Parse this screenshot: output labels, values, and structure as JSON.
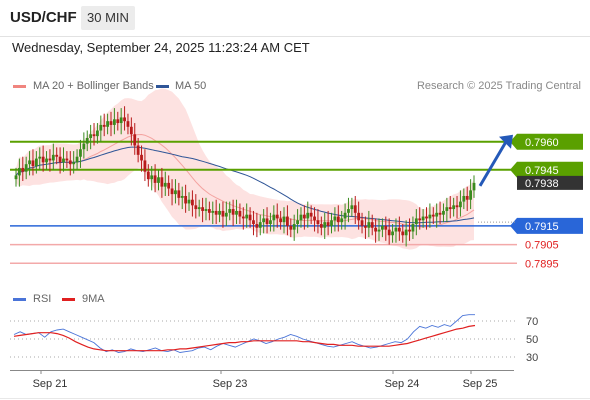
{
  "header": {
    "symbol": "USD/CHF",
    "interval": "30 MIN",
    "datetime": "Wednesday, September 24, 2025 11:23:24 AM CET"
  },
  "legend": {
    "bollinger": "MA 20 + Bollinger Bands",
    "ma50": "MA 50",
    "credit": "Research © 2025 Trading Central"
  },
  "rsi_legend": {
    "rsi": "RSI",
    "ma9": "9MA"
  },
  "chart_data": [
    {
      "type": "candlestick",
      "title": "USD/CHF",
      "interval": "30 MIN",
      "ylim": [
        0.7885,
        0.7985
      ],
      "x_ticks": [
        "Sep 21",
        "Sep 23",
        "Sep 24",
        "Sep 25"
      ],
      "levels": [
        {
          "value": 0.796,
          "label": "0.7960",
          "kind": "resistance",
          "color": "#5aa000"
        },
        {
          "value": 0.7945,
          "label": "0.7945",
          "kind": "resistance",
          "color": "#5aa000"
        },
        {
          "value": 0.7938,
          "label": "0.7938",
          "kind": "last price",
          "color": "#333333"
        },
        {
          "value": 0.7915,
          "label": "0.7915",
          "kind": "pivot",
          "color": "#2966d8"
        },
        {
          "value": 0.7905,
          "label": "0.7905",
          "kind": "support",
          "color": "#e02020"
        },
        {
          "value": 0.7895,
          "label": "0.7895",
          "kind": "support",
          "color": "#e02020"
        }
      ],
      "forecast": {
        "from": 0.7938,
        "to": 0.796,
        "direction": "up"
      },
      "closes": [
        0.7942,
        0.7946,
        0.7944,
        0.7948,
        0.795,
        0.7947,
        0.7951,
        0.7952,
        0.7949,
        0.7951,
        0.795,
        0.7953,
        0.7952,
        0.7949,
        0.7951,
        0.795,
        0.7948,
        0.7949,
        0.7952,
        0.7956,
        0.7959,
        0.7962,
        0.7964,
        0.7963,
        0.7966,
        0.7969,
        0.7968,
        0.7971,
        0.7969,
        0.7972,
        0.797,
        0.7973,
        0.7971,
        0.7968,
        0.7964,
        0.7958,
        0.7953,
        0.795,
        0.7944,
        0.794,
        0.7942,
        0.7938,
        0.7941,
        0.7936,
        0.7938,
        0.7935,
        0.7932,
        0.7934,
        0.793,
        0.7931,
        0.7927,
        0.7929,
        0.7926,
        0.7924,
        0.7925,
        0.7923,
        0.7924,
        0.7922,
        0.7923,
        0.7921,
        0.7923,
        0.792,
        0.7922,
        0.7924,
        0.7921,
        0.7923,
        0.792,
        0.7919,
        0.7921,
        0.7918,
        0.7916,
        0.7914,
        0.7917,
        0.7919,
        0.7916,
        0.7918,
        0.7921,
        0.7919,
        0.7917,
        0.792,
        0.7915,
        0.7913,
        0.7916,
        0.7918,
        0.7921,
        0.7919,
        0.7922,
        0.792,
        0.7918,
        0.7916,
        0.7914,
        0.7917,
        0.7915,
        0.7918,
        0.792,
        0.7917,
        0.7919,
        0.7922,
        0.7924,
        0.7926,
        0.7922,
        0.7918,
        0.7915,
        0.7914,
        0.7917,
        0.7914,
        0.7912,
        0.7913,
        0.7915,
        0.7913,
        0.791,
        0.7912,
        0.7914,
        0.7912,
        0.791,
        0.7913,
        0.7912,
        0.7916,
        0.7919,
        0.7918,
        0.792,
        0.7919,
        0.7921,
        0.792,
        0.7922,
        0.7921,
        0.7923,
        0.7925,
        0.7924,
        0.7926,
        0.7925,
        0.7928,
        0.7931,
        0.7929,
        0.7934,
        0.7938
      ]
    },
    {
      "type": "line",
      "title": "RSI",
      "ylim": [
        20,
        80
      ],
      "y_ticks": [
        30,
        50,
        70
      ],
      "x_ticks": [
        "Sep 21",
        "Sep 23",
        "Sep 24",
        "Sep 25"
      ],
      "series": [
        {
          "name": "RSI",
          "color": "#4a74d8",
          "values": [
            55,
            58,
            55,
            56,
            57,
            52,
            58,
            60,
            61,
            58,
            55,
            52,
            49,
            46,
            40,
            36,
            38,
            35,
            36,
            39,
            37,
            36,
            38,
            40,
            37,
            36,
            38,
            35,
            36,
            37,
            40,
            41,
            38,
            42,
            45,
            43,
            41,
            44,
            47,
            50,
            48,
            45,
            47,
            50,
            52,
            55,
            53,
            50,
            48,
            46,
            44,
            42,
            41,
            43,
            45,
            47,
            44,
            42,
            40,
            41,
            43,
            45,
            47,
            46,
            50,
            58,
            64,
            62,
            65,
            63,
            66,
            64,
            70,
            76,
            77,
            77
          ]
        },
        {
          "name": "9MA",
          "color": "#e02020",
          "values": [
            53,
            54,
            55,
            56,
            57,
            57,
            57,
            56,
            54,
            51,
            47,
            44,
            41,
            39,
            38,
            37,
            37,
            37,
            37,
            37,
            37,
            37,
            37,
            37,
            37,
            38,
            38,
            39,
            39,
            40,
            41,
            42,
            43,
            44,
            45,
            46,
            46,
            47,
            47,
            48,
            48,
            48,
            48,
            48,
            48,
            48,
            48,
            47,
            47,
            46,
            45,
            44,
            44,
            43,
            43,
            43,
            42,
            42,
            42,
            42,
            42,
            42,
            43,
            44,
            45,
            47,
            49,
            51,
            53,
            55,
            57,
            59,
            61,
            62,
            64,
            65
          ]
        }
      ]
    }
  ]
}
